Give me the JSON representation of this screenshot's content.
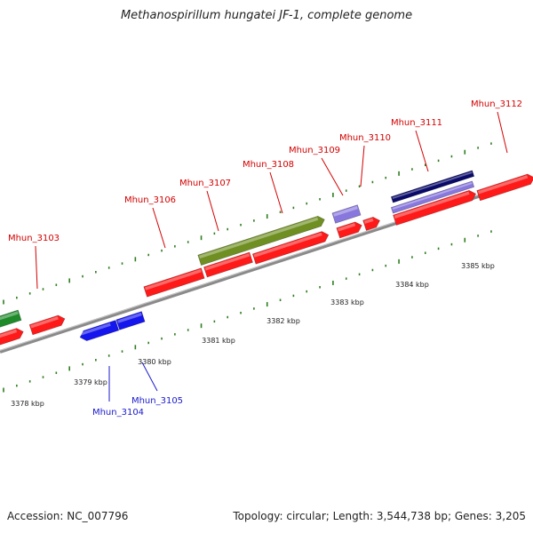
{
  "title": "Methanospirillum hungatei JF-1, complete genome",
  "footer": {
    "accession": "Accession: NC_007796",
    "topology": "Topology: circular; Length: 3,544,738 bp; Genes: 3,205"
  },
  "colors": {
    "backbone": "#8a8a8a",
    "tick": "#2e7d1f",
    "red_gene": "#ff1a1a",
    "blue_gene": "#1515ee",
    "green_gene": "#6f8f22",
    "dark_green_gene": "#1f8a2a",
    "purple_gene": "#8877dd",
    "navy_gene": "#0a0a6a",
    "label_red": "#d40000",
    "label_blue": "#1a1acc"
  },
  "scale_labels": [
    "3378 kbp",
    "3379 kbp",
    "3380 kbp",
    "3381 kbp",
    "3382 kbp",
    "3383 kbp",
    "3384 kbp",
    "3385 kbp"
  ],
  "gene_labels": [
    {
      "name": "Mhun_3103",
      "color": "red"
    },
    {
      "name": "Mhun_3104",
      "color": "blue"
    },
    {
      "name": "Mhun_3105",
      "color": "blue"
    },
    {
      "name": "Mhun_3106",
      "color": "red"
    },
    {
      "name": "Mhun_3107",
      "color": "red"
    },
    {
      "name": "Mhun_3108",
      "color": "red"
    },
    {
      "name": "Mhun_3109",
      "color": "red"
    },
    {
      "name": "Mhun_3110",
      "color": "red"
    },
    {
      "name": "Mhun_3111",
      "color": "red"
    },
    {
      "name": "Mhun_3112",
      "color": "red"
    }
  ]
}
